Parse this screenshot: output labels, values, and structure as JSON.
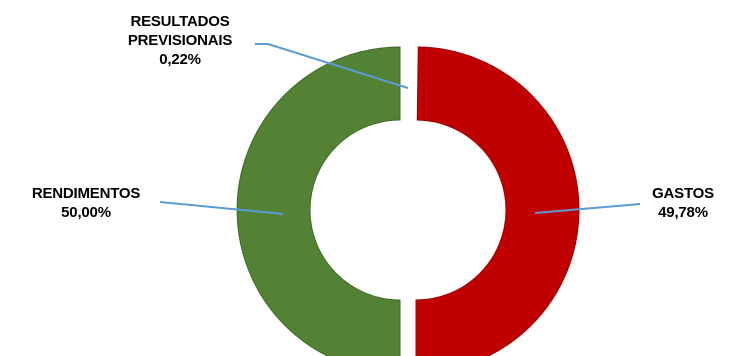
{
  "chart_data": {
    "type": "pie",
    "variant": "donut",
    "categories": [
      "RENDIMENTOS",
      "RESULTADOS PREVISIONAIS",
      "GASTOS"
    ],
    "values": [
      50.0,
      0.22,
      49.78
    ],
    "value_labels": [
      "50,00%",
      "0,22%",
      "49,78%"
    ],
    "colors": [
      "#548235",
      "#548235",
      "#c00000"
    ],
    "leader_line_color": "#5b9bd5",
    "title": "",
    "legend": false
  },
  "labels": {
    "rendimentos": {
      "line1": "RENDIMENTOS",
      "line2": "50,00%"
    },
    "resultados": {
      "line1": "RESULTADOS",
      "line2": "PREVISIONAIS",
      "line3": "0,22%"
    },
    "gastos": {
      "line1": "GASTOS",
      "line2": "49,78%"
    }
  }
}
